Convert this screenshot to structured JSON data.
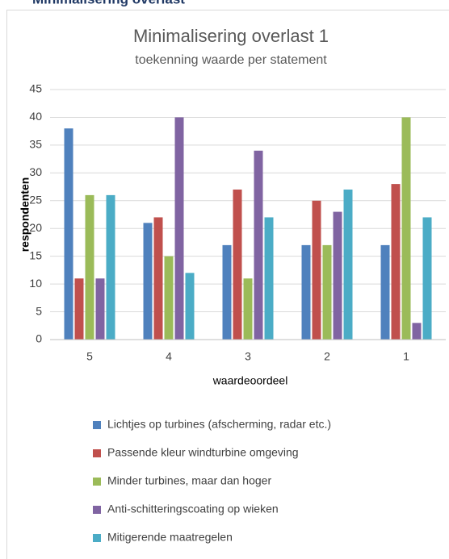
{
  "heading": "Minimalisering overlast",
  "chart_data": {
    "type": "bar",
    "title": "Minimalisering overlast 1",
    "subtitle": "toekenning waarde per statement",
    "x_label": "waardeoordeel",
    "y_label": "respondenten",
    "categories": [
      "5",
      "4",
      "3",
      "2",
      "1"
    ],
    "series": [
      {
        "name": "Lichtjes op turbines (afscherming, radar etc.)",
        "color": "#4f81bd",
        "values": [
          38,
          21,
          17,
          17,
          17
        ]
      },
      {
        "name": "Passende kleur windturbine omgeving",
        "color": "#c0504d",
        "values": [
          11,
          22,
          27,
          25,
          28
        ]
      },
      {
        "name": "Minder turbines, maar dan hoger",
        "color": "#9bbb59",
        "values": [
          26,
          15,
          11,
          17,
          40
        ]
      },
      {
        "name": "Anti-schitteringscoating op wieken",
        "color": "#8064a2",
        "values": [
          11,
          40,
          34,
          23,
          3
        ]
      },
      {
        "name": "Mitigerende maatregelen",
        "color": "#4bacc6",
        "values": [
          26,
          12,
          22,
          27,
          22
        ]
      }
    ],
    "ylim": [
      0,
      45
    ],
    "yticks": [
      0,
      5,
      10,
      15,
      20,
      25,
      30,
      35,
      40,
      45
    ],
    "grid": true,
    "legend": "bottom"
  }
}
